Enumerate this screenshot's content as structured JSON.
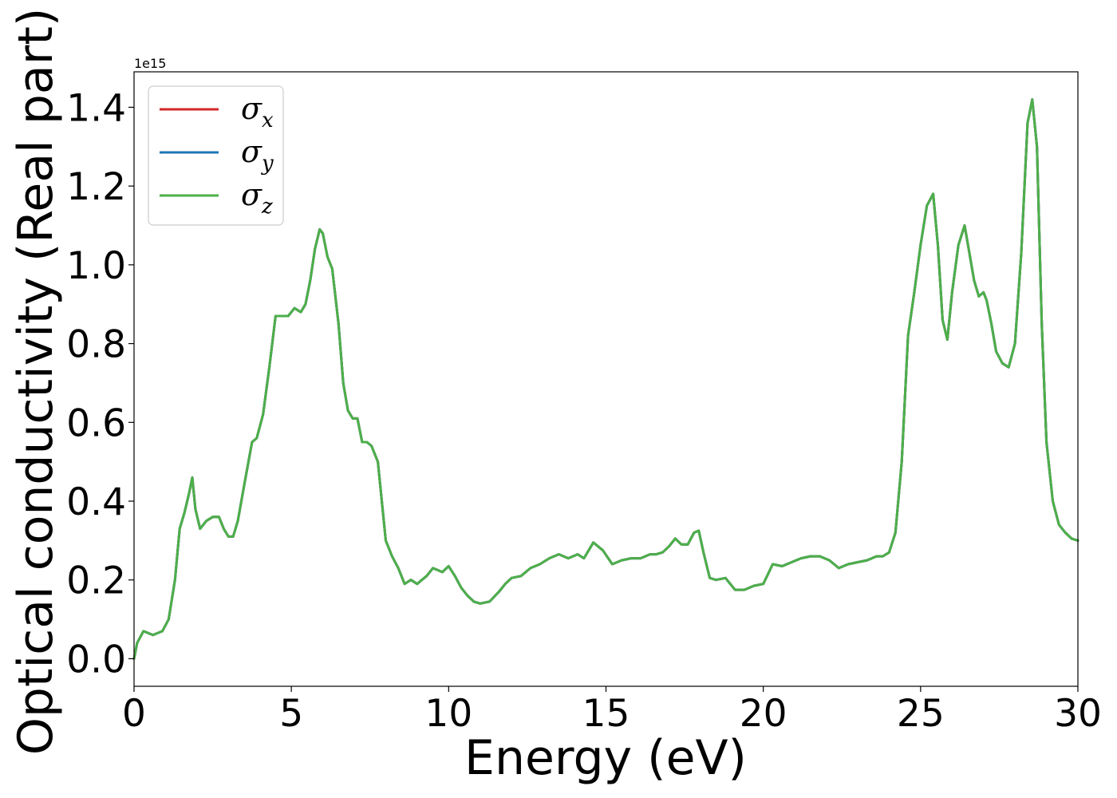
{
  "chart_data": {
    "type": "line",
    "title": "",
    "xlabel": "Energy (eV)",
    "ylabel": "Optical conductivity (Real part)",
    "y_offset_text": "1e15",
    "xlim": [
      0,
      30
    ],
    "ylim": [
      -0.07,
      1.49
    ],
    "xticks": [
      0,
      5,
      10,
      15,
      20,
      25,
      30
    ],
    "yticks": [
      0.0,
      0.2,
      0.4,
      0.6,
      0.8,
      1.0,
      1.2,
      1.4
    ],
    "ytick_labels": [
      "0.0",
      "0.2",
      "0.4",
      "0.6",
      "0.8",
      "1.0",
      "1.2",
      "1.4"
    ],
    "grid": false,
    "legend_position": "top-left",
    "series": [
      {
        "name": "σx",
        "symbol": "σ",
        "subscript": "x",
        "color": "#d62728"
      },
      {
        "name": "σy",
        "symbol": "σ",
        "subscript": "y",
        "color": "#1f77b4"
      },
      {
        "name": "σz",
        "symbol": "σ",
        "subscript": "z",
        "color": "#4daf4a"
      }
    ],
    "x": [
      0.0,
      0.1,
      0.3,
      0.6,
      0.9,
      1.1,
      1.3,
      1.45,
      1.6,
      1.75,
      1.85,
      1.95,
      2.1,
      2.3,
      2.5,
      2.7,
      2.85,
      3.0,
      3.15,
      3.3,
      3.5,
      3.75,
      3.9,
      4.1,
      4.3,
      4.5,
      4.6,
      4.75,
      4.9,
      5.1,
      5.3,
      5.45,
      5.6,
      5.75,
      5.9,
      6.0,
      6.15,
      6.3,
      6.5,
      6.65,
      6.8,
      6.95,
      7.1,
      7.25,
      7.4,
      7.55,
      7.75,
      8.0,
      8.2,
      8.4,
      8.6,
      8.8,
      9.0,
      9.15,
      9.3,
      9.5,
      9.8,
      10.0,
      10.2,
      10.4,
      10.6,
      10.8,
      11.0,
      11.3,
      11.6,
      11.8,
      12.0,
      12.3,
      12.6,
      12.9,
      13.2,
      13.5,
      13.8,
      14.1,
      14.3,
      14.6,
      14.9,
      15.2,
      15.5,
      15.8,
      16.1,
      16.4,
      16.6,
      16.8,
      17.0,
      17.2,
      17.4,
      17.6,
      17.8,
      17.95,
      18.1,
      18.3,
      18.5,
      18.8,
      19.1,
      19.4,
      19.7,
      20.0,
      20.3,
      20.6,
      20.9,
      21.2,
      21.5,
      21.8,
      22.1,
      22.4,
      22.7,
      23.0,
      23.3,
      23.6,
      23.8,
      24.0,
      24.2,
      24.4,
      24.6,
      24.8,
      25.0,
      25.2,
      25.4,
      25.55,
      25.7,
      25.85,
      26.0,
      26.2,
      26.4,
      26.55,
      26.7,
      26.85,
      27.0,
      27.1,
      27.25,
      27.4,
      27.6,
      27.8,
      28.0,
      28.2,
      28.4,
      28.55,
      28.7,
      28.85,
      29.0,
      29.2,
      29.4,
      29.6,
      29.8,
      30.0
    ],
    "y": [
      0.0,
      0.04,
      0.07,
      0.06,
      0.07,
      0.1,
      0.2,
      0.33,
      0.37,
      0.42,
      0.46,
      0.38,
      0.33,
      0.35,
      0.36,
      0.36,
      0.33,
      0.31,
      0.31,
      0.35,
      0.44,
      0.55,
      0.56,
      0.62,
      0.74,
      0.87,
      0.87,
      0.87,
      0.87,
      0.89,
      0.88,
      0.9,
      0.96,
      1.04,
      1.09,
      1.08,
      1.02,
      0.99,
      0.85,
      0.7,
      0.63,
      0.61,
      0.61,
      0.55,
      0.55,
      0.54,
      0.5,
      0.3,
      0.26,
      0.23,
      0.19,
      0.2,
      0.19,
      0.2,
      0.21,
      0.23,
      0.22,
      0.235,
      0.21,
      0.18,
      0.16,
      0.145,
      0.14,
      0.145,
      0.17,
      0.19,
      0.205,
      0.21,
      0.23,
      0.24,
      0.255,
      0.265,
      0.255,
      0.265,
      0.255,
      0.295,
      0.275,
      0.24,
      0.25,
      0.255,
      0.255,
      0.265,
      0.265,
      0.27,
      0.285,
      0.305,
      0.29,
      0.29,
      0.32,
      0.325,
      0.27,
      0.205,
      0.2,
      0.205,
      0.175,
      0.175,
      0.185,
      0.19,
      0.24,
      0.235,
      0.245,
      0.255,
      0.26,
      0.26,
      0.25,
      0.23,
      0.24,
      0.245,
      0.25,
      0.26,
      0.26,
      0.27,
      0.32,
      0.5,
      0.82,
      0.93,
      1.05,
      1.15,
      1.18,
      1.05,
      0.86,
      0.81,
      0.93,
      1.05,
      1.1,
      1.03,
      0.96,
      0.92,
      0.93,
      0.91,
      0.85,
      0.78,
      0.75,
      0.74,
      0.8,
      1.03,
      1.36,
      1.42,
      1.3,
      0.85,
      0.55,
      0.4,
      0.34,
      0.32,
      0.305,
      0.3
    ]
  }
}
